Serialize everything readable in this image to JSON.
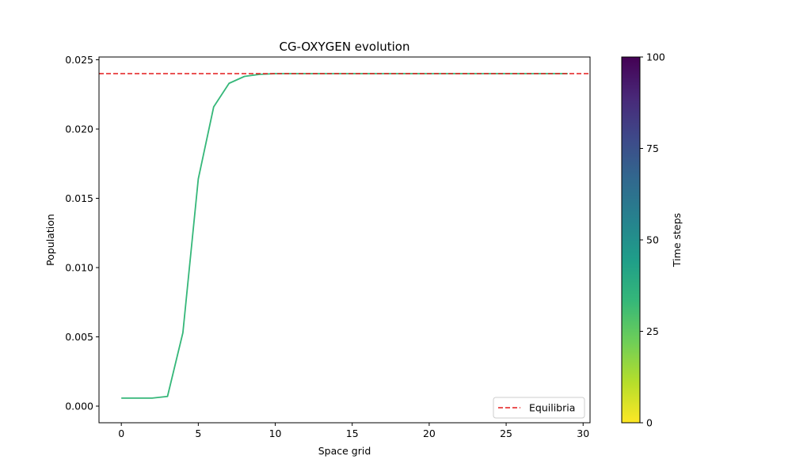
{
  "chart_data": {
    "type": "line",
    "title": "CG-OXYGEN evolution",
    "xlabel": "Space grid",
    "ylabel": "Population",
    "xlim": [
      -1.45,
      30.45
    ],
    "ylim": [
      -0.0012,
      0.0252
    ],
    "xticks": [
      0,
      5,
      10,
      15,
      20,
      25,
      30
    ],
    "xtick_labels": [
      "0",
      "5",
      "10",
      "15",
      "20",
      "25",
      "30"
    ],
    "yticks": [
      0.0,
      0.005,
      0.01,
      0.015,
      0.02,
      0.025
    ],
    "ytick_labels": [
      "0.000",
      "0.005",
      "0.010",
      "0.015",
      "0.020",
      "0.025"
    ],
    "grid": false,
    "legend_position": "lower-right",
    "series": [
      {
        "color": "#35b779",
        "style": "solid",
        "x": [
          0,
          1,
          2,
          3,
          4,
          5,
          6,
          7,
          8,
          9,
          10,
          11,
          12,
          13,
          14,
          15,
          16,
          17,
          18,
          19,
          20,
          21,
          22,
          23,
          24,
          25,
          26,
          27,
          28,
          29
        ],
        "y": [
          0.00058,
          0.00058,
          0.00058,
          0.0007,
          0.0053,
          0.0164,
          0.0216,
          0.0233,
          0.0238,
          0.02395,
          0.024,
          0.024,
          0.024,
          0.024,
          0.024,
          0.024,
          0.024,
          0.024,
          0.024,
          0.024,
          0.024,
          0.024,
          0.024,
          0.024,
          0.024,
          0.024,
          0.024,
          0.024,
          0.024,
          0.024
        ]
      }
    ],
    "reference_lines": [
      {
        "name": "Equilibria",
        "orientation": "horizontal",
        "y": 0.024,
        "color": "#e31a1c",
        "style": "dashed"
      }
    ],
    "colorbar": {
      "label": "Time steps",
      "colormap": "viridis (reversed)",
      "range": [
        0,
        100
      ],
      "ticks": [
        0,
        25,
        50,
        75,
        100
      ],
      "tick_labels": [
        "0",
        "25",
        "50",
        "75",
        "100"
      ],
      "colors_top_to_bottom": [
        "#440154",
        "#482878",
        "#3e4989",
        "#31688e",
        "#26828e",
        "#1f9e89",
        "#35b779",
        "#6ece58",
        "#b5de2b",
        "#fde725"
      ]
    }
  }
}
